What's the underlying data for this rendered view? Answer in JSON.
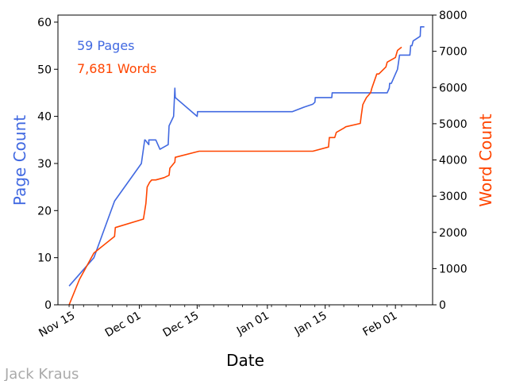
{
  "chart_data": {
    "type": "line",
    "xlabel": "Date",
    "ylabel_left": "Page Count",
    "ylabel_right": "Word Count",
    "x_ticks": [
      "Nov 15",
      "Dec 01",
      "Dec 15",
      "Jan 01",
      "Jan 15",
      "Feb 01"
    ],
    "x_tick_days": [
      0,
      16,
      30,
      47,
      61,
      78
    ],
    "x_range_days": [
      -3.7,
      87
    ],
    "ylim_left": [
      0,
      61.5
    ],
    "ylim_right": [
      0,
      8000
    ],
    "y_ticks_left": [
      0,
      10,
      20,
      30,
      40,
      50,
      60
    ],
    "y_ticks_right": [
      0,
      1000,
      2000,
      3000,
      4000,
      5000,
      6000,
      7000,
      8000
    ],
    "annotations": {
      "pages": "59 Pages",
      "words": "7,681 Words"
    },
    "colors": {
      "pages": "#4169e1",
      "words": "#ff4500"
    },
    "series": [
      {
        "name": "Pages",
        "axis": "left",
        "x_days": [
          -1,
          5,
          10,
          16.5,
          17.3,
          17.4,
          18.3,
          18.3,
          20,
          21,
          23,
          23.2,
          24.3,
          24.6,
          24.7,
          30,
          30.1,
          30.2,
          53,
          56,
          58,
          58.5,
          58.6,
          62.6,
          62.7,
          65.5,
          66.5,
          66.8,
          67.6,
          68.1,
          70,
          76,
          76.5,
          76.6,
          77,
          78,
          78.5,
          79,
          79.5,
          80,
          81.5,
          81.7,
          82,
          82.3,
          84,
          84.1,
          84.7,
          85
        ],
        "values": [
          4,
          10,
          22,
          30,
          35,
          35,
          34,
          35,
          35,
          33,
          34,
          38,
          40,
          46,
          44,
          40,
          41,
          41,
          41,
          42,
          42.6,
          43,
          44,
          44,
          45,
          45,
          45,
          45,
          45,
          45,
          45,
          45,
          46,
          47,
          47,
          49,
          50,
          53,
          53,
          53,
          53,
          55,
          55,
          56,
          57,
          59,
          59,
          59
        ]
      },
      {
        "name": "Words",
        "axis": "left",
        "x_days": [
          -1,
          1.5,
          5,
          10,
          10.2,
          17,
          17.6,
          17.9,
          18.5,
          19,
          20,
          22,
          23.2,
          23.4,
          24.6,
          24.7,
          30,
          30.5,
          31,
          40,
          50,
          58,
          61.8,
          62,
          63.3,
          63.7,
          65.5,
          66,
          69.5,
          69.7,
          70.1,
          70.4,
          71,
          72,
          72.3,
          73.5,
          74,
          75.7,
          76,
          78,
          78.5,
          79.5
        ],
        "values": [
          0,
          5.4,
          11,
          14.5,
          16.4,
          18.2,
          21.5,
          25,
          26,
          26.5,
          26.5,
          27,
          27.5,
          29,
          30.3,
          31.3,
          32.5,
          32.6,
          32.6,
          32.6,
          32.6,
          32.6,
          33.5,
          35.5,
          35.5,
          36.6,
          37.5,
          37.8,
          38.5,
          40,
          42.5,
          43,
          44,
          45,
          46,
          49,
          49,
          50.5,
          51.5,
          52.5,
          54,
          54.7
        ]
      }
    ]
  },
  "watermark": "Jack Kraus"
}
